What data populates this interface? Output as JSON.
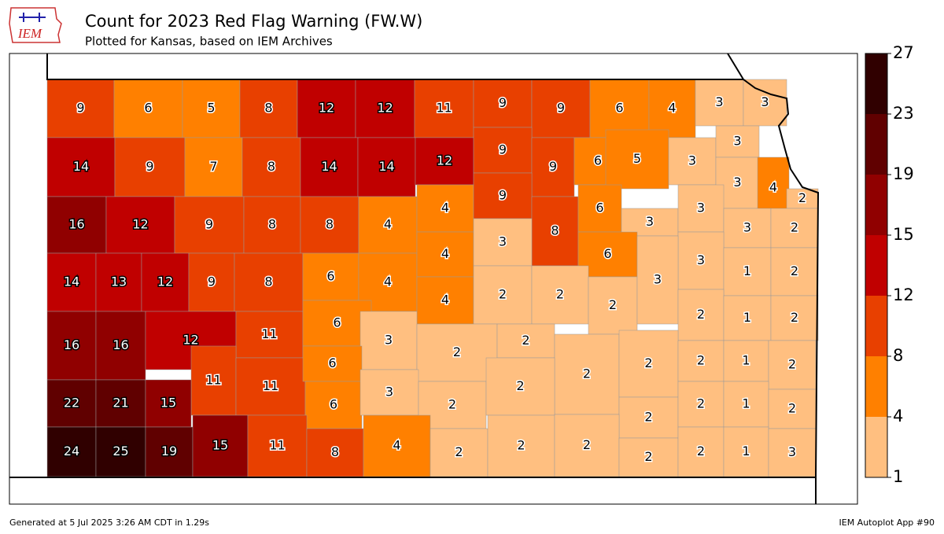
{
  "header": {
    "logo_text": "IEM",
    "title": "Count for 2023 Red Flag Warning (FW.W)",
    "subtitle": "Plotted for Kansas, based on IEM Archives"
  },
  "map": {
    "county_counts": [
      9,
      6,
      5,
      8,
      12,
      12,
      11,
      9,
      9,
      6,
      4,
      3,
      3,
      14,
      9,
      7,
      8,
      14,
      14,
      12,
      9,
      9,
      6,
      5,
      3,
      3,
      3,
      4,
      2,
      16,
      12,
      9,
      8,
      8,
      4,
      4,
      9,
      8,
      6,
      3,
      3,
      3,
      2,
      14,
      13,
      12,
      9,
      8,
      6,
      4,
      4,
      3,
      6,
      3,
      1,
      2,
      4,
      2,
      2,
      2,
      3,
      2,
      1,
      2,
      16,
      16,
      12,
      11,
      6,
      3,
      2,
      2,
      2,
      2,
      2,
      1,
      2,
      11,
      11,
      6,
      6,
      3,
      2,
      2,
      22,
      21,
      15,
      2,
      2,
      1,
      2,
      24,
      25,
      19,
      15,
      11,
      8,
      4,
      2,
      2,
      2,
      2,
      2,
      1,
      3
    ],
    "colorbar": {
      "levels": [
        1,
        4,
        8,
        12,
        15,
        19,
        23,
        27
      ],
      "colors": [
        "#ffbf80",
        "#ff8000",
        "#e84000",
        "#c00000",
        "#900000",
        "#600000",
        "#300000"
      ]
    }
  },
  "footer": {
    "left": "Generated at 5 Jul 2025 3:26 AM CDT in 1.29s",
    "right": "IEM Autoplot App #90"
  }
}
